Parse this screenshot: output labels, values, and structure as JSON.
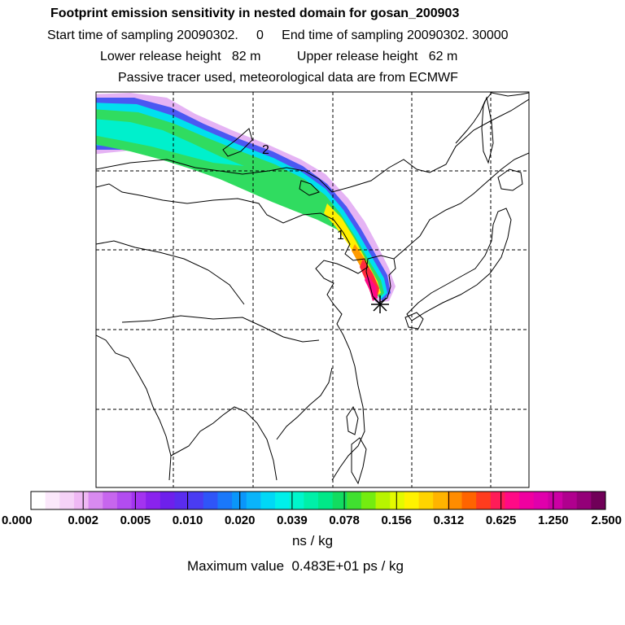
{
  "header": {
    "title": "Footprint emission sensitivity in nested domain for gosan_200903",
    "sampling": "Start time of sampling 20090302.     0     End time of sampling 20090302. 30000",
    "release": "Lower release height   82 m          Upper release height   62 m",
    "tracer": "Passive tracer used, meteorological data are from ECMWF"
  },
  "map": {
    "labels": [
      "2",
      "1"
    ],
    "release_marker": "release-site-star",
    "coastline_color": "#000000",
    "grid_style": "dashed"
  },
  "colorbar": {
    "tick_labels": [
      "0.000",
      "0.002",
      "0.005",
      "0.010",
      "0.020",
      "0.039",
      "0.078",
      "0.156",
      "0.312",
      "0.625",
      "1.250",
      "2.500"
    ],
    "colors": [
      "#ffffff",
      "#fbe8fb",
      "#f5d2f7",
      "#efb8f4",
      "#d98af0",
      "#c766ee",
      "#b24cf0",
      "#a333f0",
      "#8a22ee",
      "#6e20ec",
      "#5a2cee",
      "#4a3cf2",
      "#2f55f8",
      "#1a78fa",
      "#0a96fa",
      "#0ab4fa",
      "#00d8f6",
      "#00f0ea",
      "#00f6cc",
      "#00f0a8",
      "#00e888",
      "#12dc60",
      "#40e030",
      "#74ec10",
      "#b8f400",
      "#e4fa00",
      "#fff200",
      "#ffd400",
      "#ffb400",
      "#ff8c00",
      "#ff6400",
      "#ff3c1e",
      "#ff1c58",
      "#ff0a86",
      "#f000a0",
      "#e000ac",
      "#cc00a4",
      "#b0008e",
      "#940078",
      "#700058"
    ],
    "unit": "ns / kg"
  },
  "footer": {
    "max_value": "Maximum value  0.483E+01 ps / kg"
  }
}
